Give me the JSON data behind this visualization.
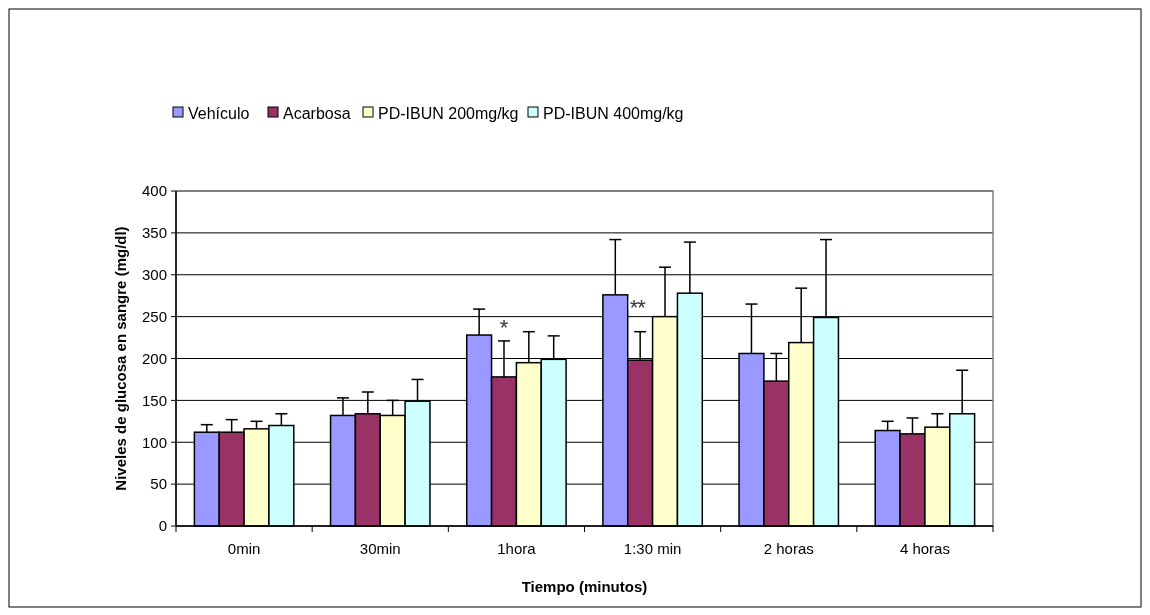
{
  "chart_data": {
    "type": "bar",
    "xlabel": "Tiempo (minutos)",
    "ylabel": "Niveles de glucosa en sangre (mg/dl)",
    "categories": [
      "0min",
      "30min",
      "1hora",
      "1:30 min",
      "2 horas",
      "4 horas"
    ],
    "series": [
      {
        "name": "Vehículo",
        "color": "#9999ff",
        "values": [
          112,
          132,
          228,
          276,
          206,
          114
        ],
        "errors": [
          [
            112,
            121
          ],
          [
            132,
            153
          ],
          [
            228,
            259
          ],
          [
            276,
            342
          ],
          [
            206,
            265
          ],
          [
            114,
            125
          ]
        ]
      },
      {
        "name": "Acarbosa",
        "color": "#993366",
        "values": [
          112,
          134,
          178,
          198,
          173,
          110
        ],
        "errors": [
          [
            112,
            127
          ],
          [
            134,
            160
          ],
          [
            178,
            221
          ],
          [
            198,
            232
          ],
          [
            173,
            206
          ],
          [
            110,
            129
          ]
        ]
      },
      {
        "name": "PD-IBUN 200mg/kg",
        "color": "#ffffcc",
        "values": [
          116,
          132,
          195,
          250,
          219,
          118
        ],
        "errors": [
          [
            116,
            125
          ],
          [
            132,
            150
          ],
          [
            195,
            232
          ],
          [
            250,
            309
          ],
          [
            219,
            284
          ],
          [
            118,
            134
          ]
        ]
      },
      {
        "name": "PD-IBUN 400mg/kg",
        "color": "#ccffff",
        "values": [
          120,
          149,
          199,
          278,
          249,
          134
        ],
        "errors": [
          [
            120,
            134
          ],
          [
            149,
            175
          ],
          [
            199,
            227
          ],
          [
            278,
            339
          ],
          [
            249,
            342
          ],
          [
            134,
            186
          ]
        ]
      }
    ],
    "ylim": [
      0,
      400
    ],
    "yticks": [
      0,
      50,
      100,
      150,
      200,
      250,
      300,
      350,
      400
    ],
    "grid": "y",
    "legend": "top",
    "annotations": [
      "*",
      "**"
    ]
  }
}
